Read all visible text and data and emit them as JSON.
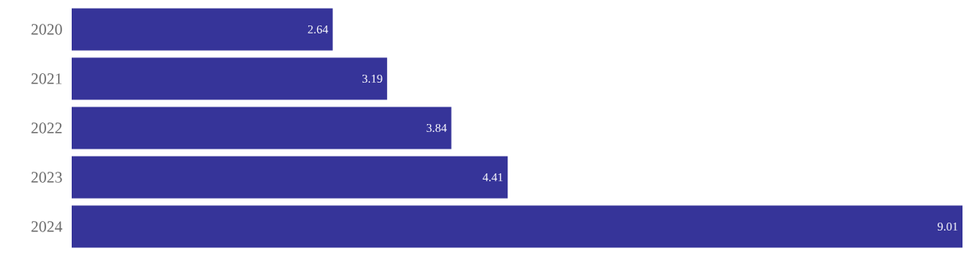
{
  "chart_data": {
    "type": "bar",
    "orientation": "horizontal",
    "categories": [
      "2020",
      "2021",
      "2022",
      "2023",
      "2024"
    ],
    "values": [
      2.64,
      3.19,
      3.84,
      4.41,
      9.01
    ],
    "color": "#363499",
    "data_labels": true
  }
}
